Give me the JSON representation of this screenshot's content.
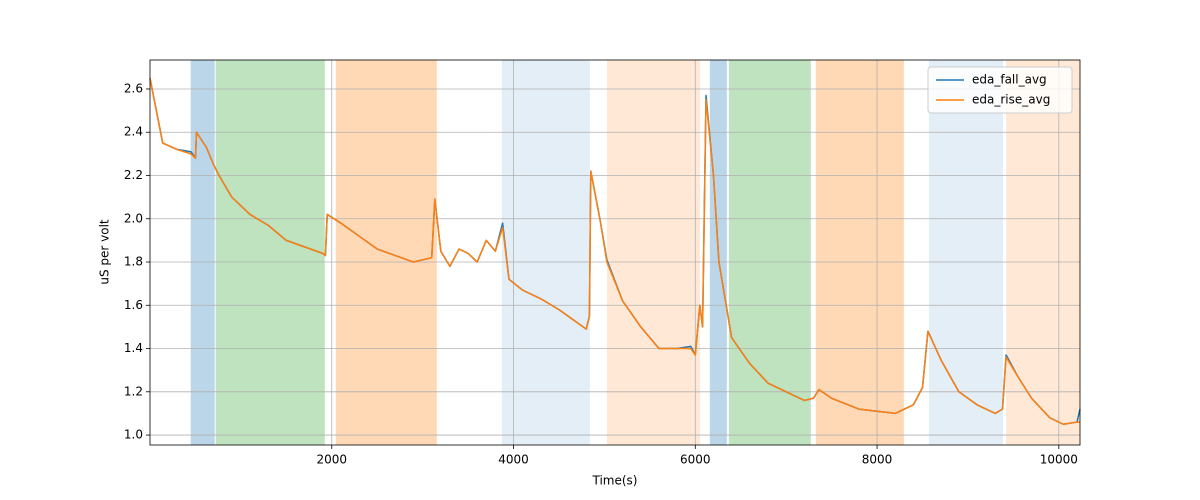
{
  "chart_data": {
    "type": "line",
    "xlabel": "Time(s)",
    "ylabel": "uS per volt",
    "xlim": [
      0,
      10233
    ],
    "ylim": [
      0.954,
      2.734
    ],
    "xticks": [
      2000,
      4000,
      6000,
      8000,
      10000
    ],
    "yticks": [
      {
        "value": 1.0,
        "label": "1.0"
      },
      {
        "value": 1.2,
        "label": "1.2"
      },
      {
        "value": 1.4,
        "label": "1.4"
      },
      {
        "value": 1.6,
        "label": "1.6"
      },
      {
        "value": 1.8,
        "label": "1.8"
      },
      {
        "value": 2.0,
        "label": "2.0"
      },
      {
        "value": 2.2,
        "label": "2.2"
      },
      {
        "value": 2.4,
        "label": "2.4"
      },
      {
        "value": 2.6,
        "label": "2.6"
      }
    ],
    "grid": true,
    "legend": "upper right",
    "spans": [
      {
        "x": [
          448,
          712
        ],
        "color": "#1f77b4",
        "alpha": 0.3
      },
      {
        "x": [
          723,
          1923
        ],
        "color": "#2ca02c",
        "alpha": 0.3
      },
      {
        "x": [
          2044,
          3156
        ],
        "color": "#ff7f0e",
        "alpha": 0.3
      },
      {
        "x": [
          3871,
          4840
        ],
        "color": "#1f77b4",
        "alpha": 0.12
      },
      {
        "x": [
          5027,
          6051
        ],
        "color": "#ff7f0e",
        "alpha": 0.17
      },
      {
        "x": [
          6160,
          6347
        ],
        "color": "#1f77b4",
        "alpha": 0.3
      },
      {
        "x": [
          6369,
          7271
        ],
        "color": "#2ca02c",
        "alpha": 0.3
      },
      {
        "x": [
          7326,
          8295
        ],
        "color": "#ff7f0e",
        "alpha": 0.3
      },
      {
        "x": [
          8571,
          9386
        ],
        "color": "#1f77b4",
        "alpha": 0.12
      },
      {
        "x": [
          9419,
          10233
        ],
        "color": "#ff7f0e",
        "alpha": 0.17
      }
    ],
    "x": [
      0,
      140,
      300,
      450,
      500,
      512,
      620,
      700,
      760,
      900,
      1100,
      1300,
      1500,
      1700,
      1900,
      1930,
      1950,
      2100,
      2300,
      2500,
      2700,
      2900,
      3100,
      3134,
      3200,
      3300,
      3400,
      3500,
      3600,
      3700,
      3800,
      3880,
      3950,
      4100,
      4300,
      4500,
      4700,
      4800,
      4835,
      4850,
      4950,
      5027,
      5200,
      5400,
      5600,
      5800,
      5950,
      6000,
      6050,
      6080,
      6118,
      6200,
      6260,
      6400,
      6600,
      6800,
      7000,
      7200,
      7300,
      7360,
      7500,
      7800,
      8000,
      8200,
      8400,
      8500,
      8560,
      8700,
      8900,
      9100,
      9300,
      9380,
      9420,
      9550,
      9700,
      9900,
      10050,
      10200,
      10233
    ],
    "series": [
      {
        "name": "eda_fall_avg",
        "color": "#1f77b4",
        "values": [
          2.65,
          2.35,
          2.32,
          2.31,
          2.28,
          2.4,
          2.33,
          2.25,
          2.2,
          2.1,
          2.02,
          1.97,
          1.9,
          1.87,
          1.84,
          1.83,
          2.02,
          1.98,
          1.92,
          1.86,
          1.83,
          1.8,
          1.82,
          2.09,
          1.85,
          1.78,
          1.86,
          1.84,
          1.8,
          1.9,
          1.85,
          1.98,
          1.72,
          1.67,
          1.63,
          1.58,
          1.52,
          1.49,
          1.55,
          2.22,
          2.0,
          1.81,
          1.62,
          1.5,
          1.4,
          1.4,
          1.41,
          1.37,
          1.6,
          1.5,
          2.57,
          2.2,
          1.8,
          1.45,
          1.33,
          1.24,
          1.2,
          1.16,
          1.17,
          1.21,
          1.17,
          1.12,
          1.11,
          1.1,
          1.14,
          1.22,
          1.48,
          1.35,
          1.2,
          1.14,
          1.1,
          1.12,
          1.37,
          1.27,
          1.17,
          1.08,
          1.05,
          1.06,
          1.12
        ]
      },
      {
        "name": "eda_rise_avg",
        "color": "#ff7f0e",
        "values": [
          2.65,
          2.35,
          2.32,
          2.3,
          2.28,
          2.4,
          2.33,
          2.25,
          2.2,
          2.1,
          2.02,
          1.97,
          1.9,
          1.87,
          1.84,
          1.83,
          2.02,
          1.98,
          1.92,
          1.86,
          1.83,
          1.8,
          1.82,
          2.09,
          1.85,
          1.78,
          1.86,
          1.84,
          1.8,
          1.9,
          1.85,
          1.96,
          1.72,
          1.67,
          1.63,
          1.58,
          1.52,
          1.49,
          1.55,
          2.22,
          2.0,
          1.8,
          1.62,
          1.5,
          1.4,
          1.4,
          1.4,
          1.37,
          1.6,
          1.5,
          2.55,
          2.2,
          1.8,
          1.45,
          1.33,
          1.24,
          1.2,
          1.16,
          1.17,
          1.21,
          1.17,
          1.12,
          1.11,
          1.1,
          1.14,
          1.22,
          1.48,
          1.35,
          1.2,
          1.14,
          1.1,
          1.12,
          1.36,
          1.27,
          1.17,
          1.08,
          1.05,
          1.06,
          1.06
        ]
      }
    ]
  }
}
